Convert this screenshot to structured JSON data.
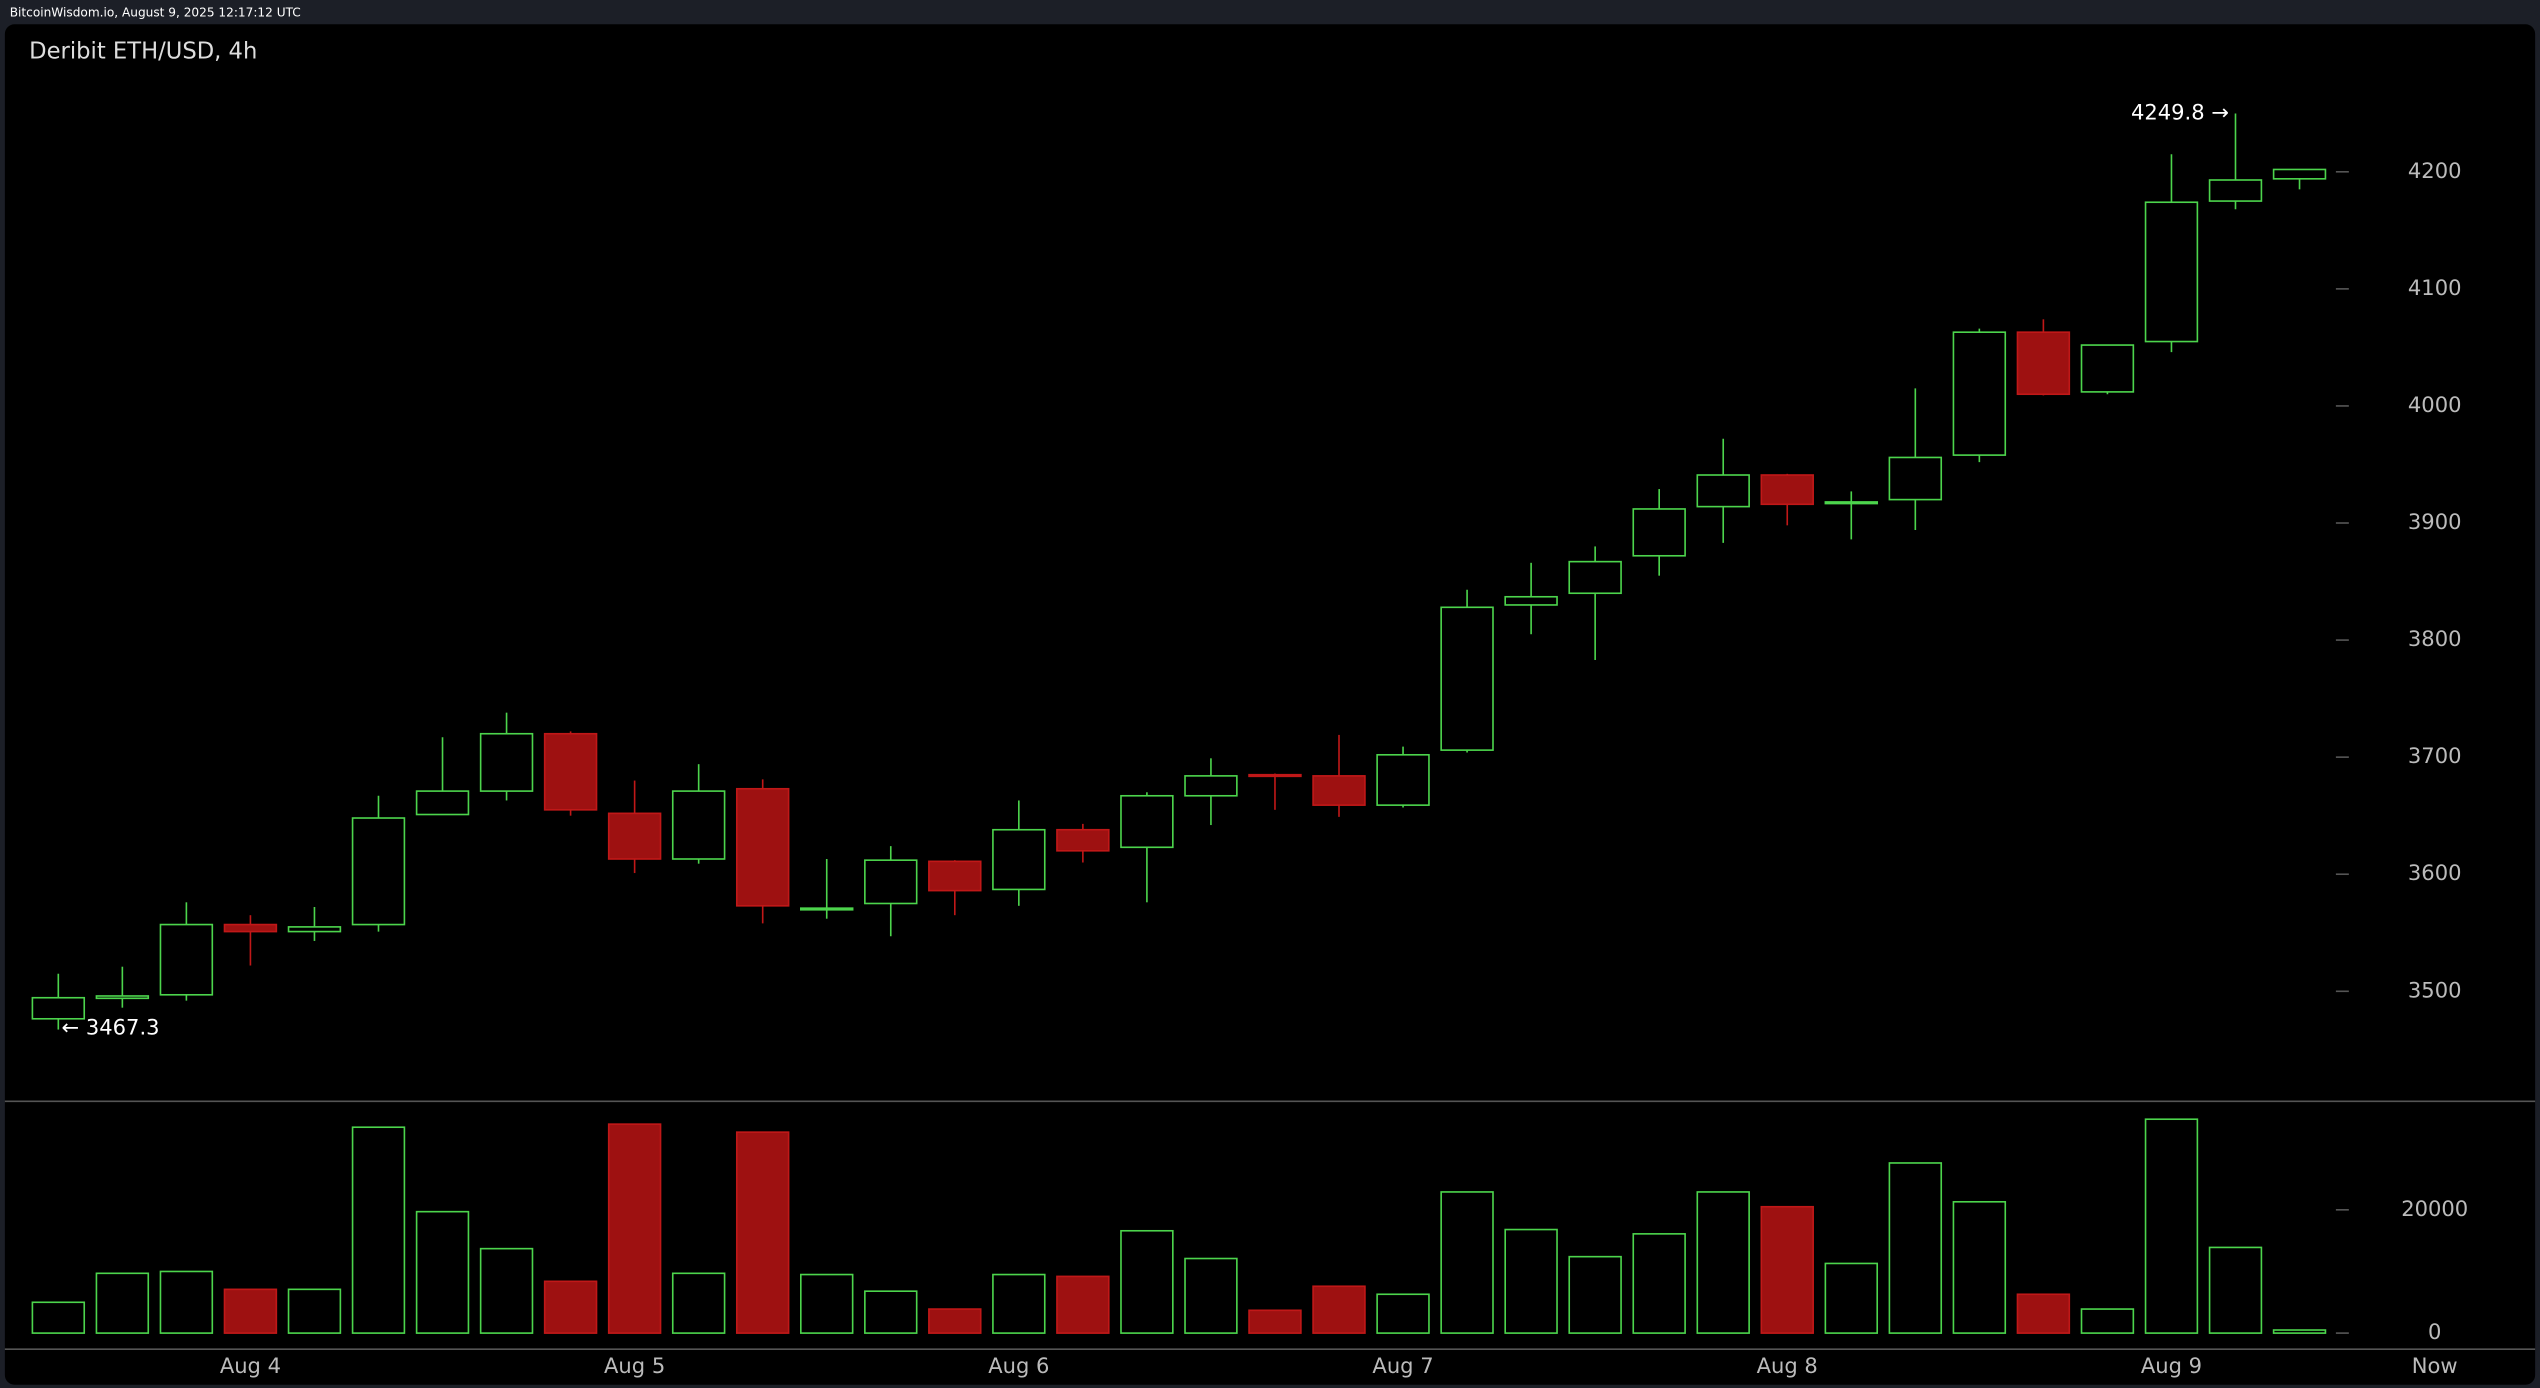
{
  "header": "BitcoinWisdom.io, August 9, 2025 12:17:12 UTC",
  "chart_data": {
    "type": "candlestick",
    "title": "Deribit ETH/USD, 4h",
    "annotations": [
      "4249.8 →",
      "← 3467.3"
    ],
    "categories": [
      null,
      null,
      null,
      "Aug 4",
      null,
      null,
      null,
      null,
      null,
      "Aug 5",
      null,
      null,
      null,
      null,
      null,
      "Aug 6",
      null,
      null,
      null,
      null,
      null,
      "Aug 7",
      null,
      null,
      null,
      null,
      null,
      "Aug 8",
      null,
      null,
      null,
      null,
      null,
      "Aug 9",
      null,
      null
    ],
    "x_end_label": "Now",
    "open": [
      3476.5,
      3494,
      3497,
      3557,
      3551,
      3557,
      3651,
      3671,
      3720,
      3652,
      3613,
      3673,
      3570,
      3575,
      3611,
      3587,
      3638,
      3623,
      3667,
      3685,
      3684,
      3659,
      3706,
      3830,
      3840,
      3872,
      3914,
      3941,
      3917,
      3920,
      3958,
      4063,
      4012,
      4055,
      4175,
      4194
    ],
    "high": [
      3515,
      3521,
      3576,
      3565,
      3572,
      3667,
      3717,
      3738,
      3722,
      3680,
      3694,
      3681,
      3613,
      3624,
      3612,
      3663,
      3643,
      3670,
      3699,
      3686,
      3719,
      3709,
      3843,
      3866,
      3880,
      3929,
      3972,
      3942,
      3927,
      4015,
      4066,
      4074,
      4052,
      4215,
      4249.8,
      4202
    ],
    "low": [
      3467.3,
      3486,
      3492,
      3522,
      3543,
      3551,
      3651,
      3663,
      3650,
      3601,
      3609,
      3558,
      3562,
      3547,
      3565,
      3573,
      3610,
      3576,
      3642,
      3655,
      3649,
      3657,
      3704,
      3805,
      3783,
      3855,
      3883,
      3898,
      3886,
      3894,
      3952,
      4009,
      4010,
      4046,
      4168,
      4185
    ],
    "close": [
      3494.5,
      3496,
      3557,
      3551,
      3555,
      3648,
      3671,
      3720,
      3655,
      3613,
      3671,
      3573,
      3571,
      3612,
      3586,
      3638,
      3620,
      3667,
      3684,
      3684,
      3659,
      3702,
      3828,
      3837,
      3867,
      3912,
      3941,
      3916,
      3918,
      3956,
      4063,
      4010,
      4052,
      4174,
      4193,
      4202
    ],
    "volume": [
      5000,
      9700,
      10000,
      7100,
      7100,
      33400,
      19700,
      13700,
      8400,
      33900,
      9700,
      32600,
      9500,
      6800,
      3900,
      9500,
      9200,
      16600,
      12100,
      3700,
      7600,
      6300,
      22900,
      16800,
      12400,
      16100,
      22900,
      20500,
      11300,
      27600,
      21300,
      6300,
      3900,
      34700,
      13900,
      500
    ],
    "up_color": "#4cd44c",
    "down_color": "#9e1111",
    "ylim": [
      3406,
      4326
    ],
    "yticks": [
      3500,
      3600,
      3700,
      3800,
      3900,
      4000,
      4100,
      4200
    ],
    "volume_ylim": [
      -2600,
      37600
    ],
    "volume_yticks": [
      0,
      20000
    ]
  }
}
